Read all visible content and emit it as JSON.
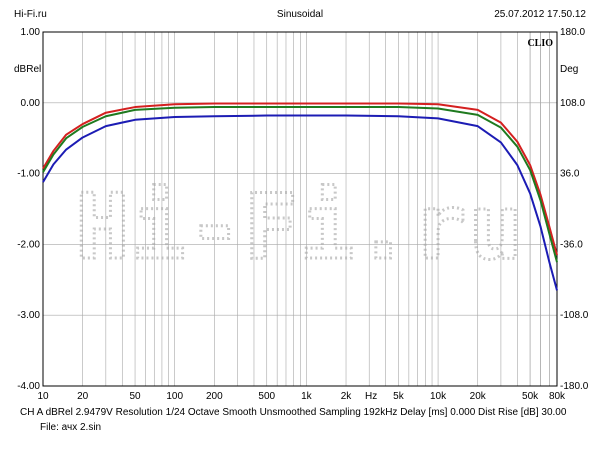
{
  "header": {
    "left": "Hi-Fi.ru",
    "center": "Sinusoidal",
    "right": "25.07.2012 17.50.12"
  },
  "brand": "CLIO",
  "watermark": "Hi-Fi.ru",
  "footer": {
    "line1": "CH A   dBRel 2.9479V  Resolution 1/24 Octave   Smooth Unsmoothed   Sampling 192kHz   Delay [ms] 0.000    Dist Rise [dB] 30.00",
    "line2": "File: ачх 2.sin"
  },
  "chart_data": {
    "type": "line",
    "xscale": "log",
    "xlim": [
      10,
      80000
    ],
    "ylim": [
      -4.0,
      1.0
    ],
    "ylabel": "dBRel",
    "y2label": "Deg",
    "y2lim": [
      -180,
      180
    ],
    "x_unit_label": "Hz",
    "grid": true,
    "x_ticks": [
      {
        "value": 10,
        "label": "10"
      },
      {
        "value": 20,
        "label": "20"
      },
      {
        "value": 50,
        "label": "50"
      },
      {
        "value": 100,
        "label": "100"
      },
      {
        "value": 200,
        "label": "200"
      },
      {
        "value": 500,
        "label": "500"
      },
      {
        "value": 1000,
        "label": "1k"
      },
      {
        "value": 2000,
        "label": "2k"
      },
      {
        "value": 5000,
        "label": "5k"
      },
      {
        "value": 10000,
        "label": "10k"
      },
      {
        "value": 20000,
        "label": "20k"
      },
      {
        "value": 50000,
        "label": "50k"
      },
      {
        "value": 80000,
        "label": "80k"
      }
    ],
    "y_ticks": [
      {
        "value": 1.0,
        "label": "1.00"
      },
      {
        "value": 0.0,
        "label": "0.00"
      },
      {
        "value": -1.0,
        "label": "-1.00"
      },
      {
        "value": -2.0,
        "label": "-2.00"
      },
      {
        "value": -3.0,
        "label": "-3.00"
      },
      {
        "value": -4.0,
        "label": "-4.00"
      }
    ],
    "y2_ticks": [
      {
        "value": 180,
        "label": "180.0"
      },
      {
        "value": 108,
        "label": "108.0"
      },
      {
        "value": 36,
        "label": "36.0"
      },
      {
        "value": -36,
        "label": "-36.0"
      },
      {
        "value": -108,
        "label": "-108.0"
      },
      {
        "value": -180,
        "label": "-180.0"
      }
    ],
    "series": [
      {
        "color": "#d42020",
        "x": [
          10,
          12,
          15,
          20,
          30,
          50,
          100,
          200,
          500,
          1000,
          2000,
          5000,
          10000,
          20000,
          30000,
          40000,
          50000,
          60000,
          70000,
          80000
        ],
        "y": [
          -0.93,
          -0.68,
          -0.45,
          -0.3,
          -0.14,
          -0.06,
          -0.02,
          -0.01,
          -0.01,
          -0.01,
          -0.01,
          -0.01,
          -0.02,
          -0.1,
          -0.28,
          -0.55,
          -0.88,
          -1.3,
          -1.75,
          -2.15
        ]
      },
      {
        "color": "#1f7a1f",
        "x": [
          10,
          12,
          15,
          20,
          30,
          50,
          100,
          200,
          500,
          1000,
          2000,
          5000,
          10000,
          20000,
          30000,
          40000,
          50000,
          60000,
          70000,
          80000
        ],
        "y": [
          -0.98,
          -0.73,
          -0.5,
          -0.34,
          -0.19,
          -0.1,
          -0.07,
          -0.06,
          -0.06,
          -0.06,
          -0.06,
          -0.06,
          -0.08,
          -0.17,
          -0.35,
          -0.62,
          -0.95,
          -1.38,
          -1.85,
          -2.25
        ]
      },
      {
        "color": "#1c1cb4",
        "x": [
          10,
          12,
          15,
          20,
          30,
          50,
          100,
          200,
          500,
          1000,
          2000,
          5000,
          10000,
          20000,
          30000,
          40000,
          50000,
          60000,
          70000,
          80000
        ],
        "y": [
          -1.12,
          -0.87,
          -0.66,
          -0.49,
          -0.33,
          -0.24,
          -0.2,
          -0.19,
          -0.18,
          -0.18,
          -0.18,
          -0.19,
          -0.22,
          -0.33,
          -0.56,
          -0.88,
          -1.28,
          -1.75,
          -2.25,
          -2.65
        ]
      }
    ]
  }
}
